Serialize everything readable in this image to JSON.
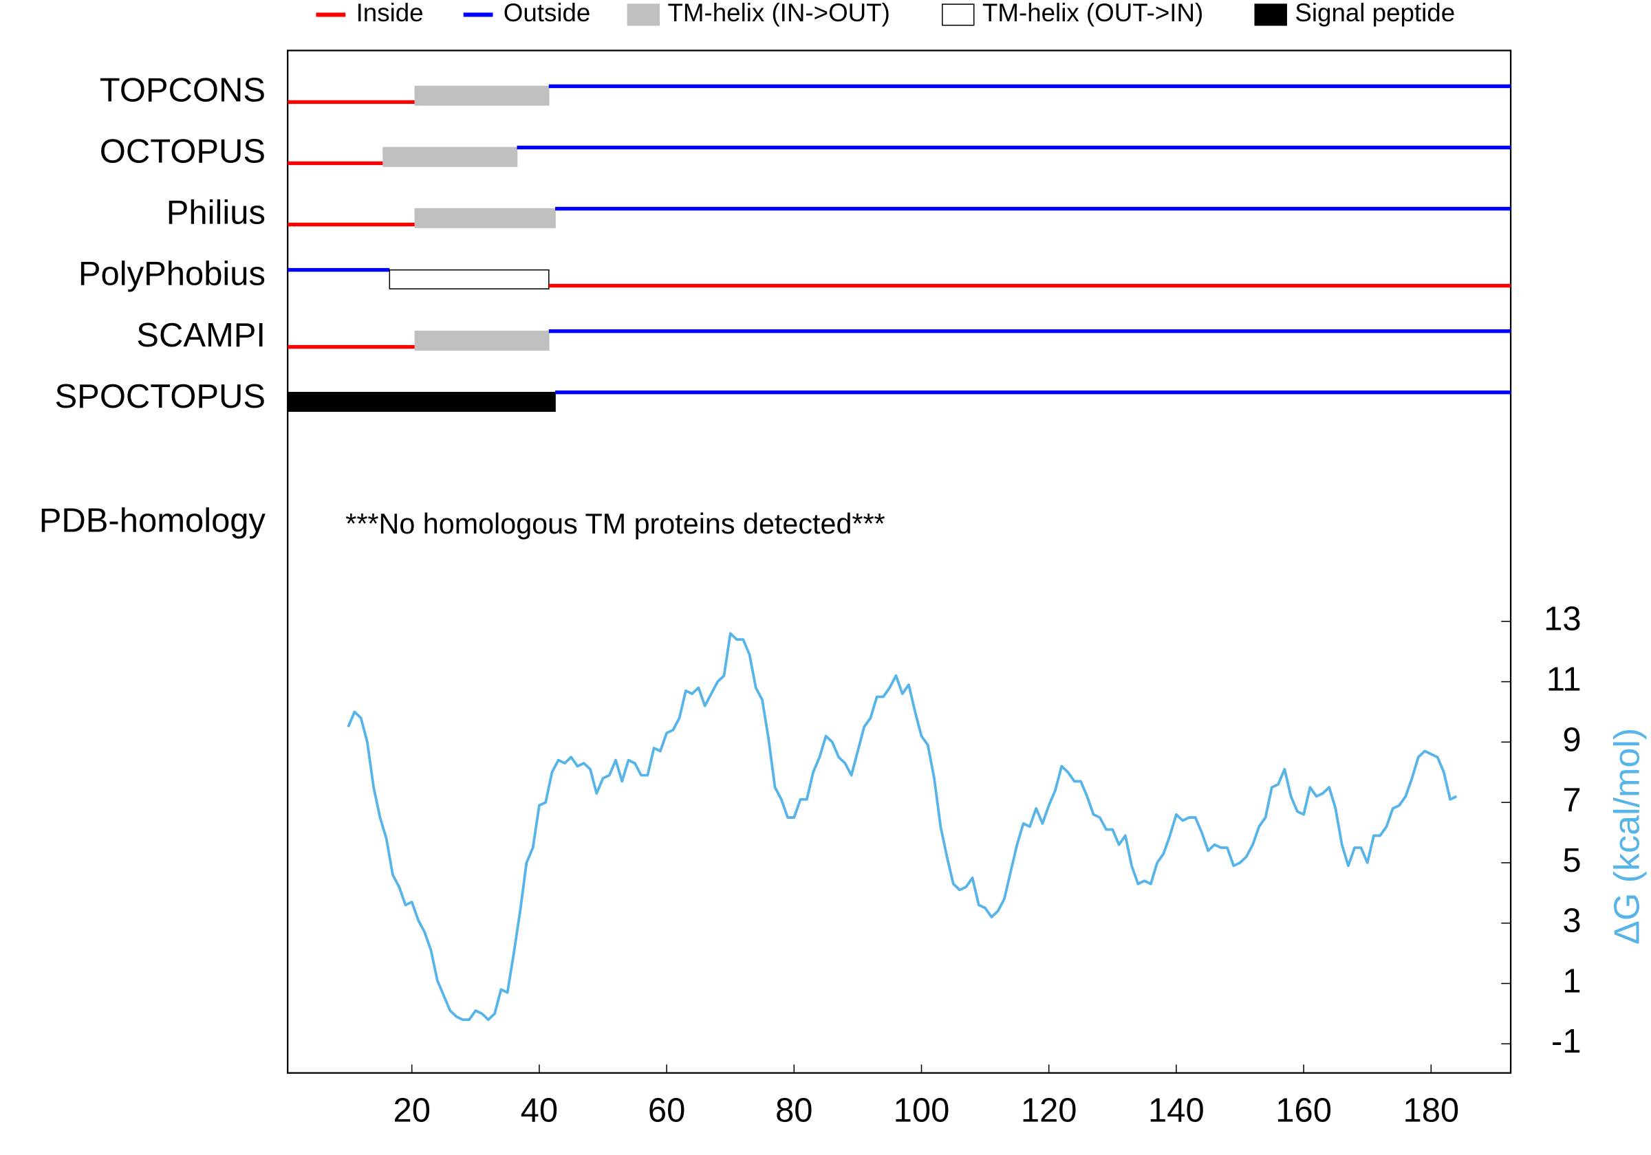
{
  "chart_data": [
    {
      "type": "topology",
      "legend": [
        {
          "name": "Inside",
          "kind": "inside",
          "color": "#ff0000"
        },
        {
          "name": "Outside",
          "kind": "outside",
          "color": "#0000ff"
        },
        {
          "name": "TM-helix (IN->OUT)",
          "kind": "tm-in-out",
          "color": "#c0c0c0"
        },
        {
          "name": "TM-helix (OUT->IN)",
          "kind": "tm-out-in",
          "color": "#ffffff"
        },
        {
          "name": "Signal peptide",
          "kind": "signal",
          "color": "#000000"
        }
      ],
      "methods": [
        {
          "name": "TOPCONS",
          "segments": [
            {
              "kind": "inside",
              "start": 1,
              "end": 20
            },
            {
              "kind": "tm-in-out",
              "start": 21,
              "end": 41
            },
            {
              "kind": "outside",
              "start": 42,
              "end": 192
            }
          ]
        },
        {
          "name": "OCTOPUS",
          "segments": [
            {
              "kind": "inside",
              "start": 1,
              "end": 15
            },
            {
              "kind": "tm-in-out",
              "start": 16,
              "end": 36
            },
            {
              "kind": "outside",
              "start": 37,
              "end": 192
            }
          ]
        },
        {
          "name": "Philius",
          "segments": [
            {
              "kind": "inside",
              "start": 1,
              "end": 20
            },
            {
              "kind": "tm-in-out",
              "start": 21,
              "end": 42
            },
            {
              "kind": "outside",
              "start": 43,
              "end": 192
            }
          ]
        },
        {
          "name": "PolyPhobius",
          "segments": [
            {
              "kind": "outside",
              "start": 1,
              "end": 16
            },
            {
              "kind": "tm-out-in",
              "start": 17,
              "end": 41
            },
            {
              "kind": "inside",
              "start": 42,
              "end": 192
            }
          ]
        },
        {
          "name": "SCAMPI",
          "segments": [
            {
              "kind": "inside",
              "start": 1,
              "end": 20
            },
            {
              "kind": "tm-in-out",
              "start": 21,
              "end": 41
            },
            {
              "kind": "outside",
              "start": 42,
              "end": 192
            }
          ]
        },
        {
          "name": "SPOCTOPUS",
          "segments": [
            {
              "kind": "signal",
              "start": 1,
              "end": 42
            },
            {
              "kind": "outside",
              "start": 43,
              "end": 192
            }
          ]
        }
      ],
      "homology_label": "PDB-homology",
      "homology_note": "***No homologous TM proteins detected***"
    },
    {
      "type": "line",
      "y_label": "ΔG (kcal/mol)",
      "color": "#56b4e9",
      "xlim": [
        0.5,
        192.5
      ],
      "xticks": [
        20,
        40,
        60,
        80,
        100,
        120,
        140,
        160,
        180
      ],
      "ylim": [
        -2,
        14
      ],
      "yticks": [
        -1,
        1,
        3,
        5,
        7,
        9,
        11,
        13
      ],
      "x": [
        10,
        11,
        12,
        13,
        14,
        15,
        16,
        17,
        18,
        19,
        20,
        21,
        22,
        23,
        24,
        25,
        26,
        27,
        28,
        29,
        30,
        31,
        32,
        33,
        34,
        35,
        36,
        37,
        38,
        39,
        40,
        41,
        42,
        43,
        44,
        45,
        46,
        47,
        48,
        49,
        50,
        51,
        52,
        53,
        54,
        55,
        56,
        57,
        58,
        59,
        60,
        61,
        62,
        63,
        64,
        65,
        66,
        67,
        68,
        69,
        70,
        71,
        72,
        73,
        74,
        75,
        76,
        77,
        78,
        79,
        80,
        81,
        82,
        83,
        84,
        85,
        86,
        87,
        88,
        89,
        90,
        91,
        92,
        93,
        94,
        95,
        96,
        97,
        98,
        99,
        100,
        101,
        102,
        103,
        104,
        105,
        106,
        107,
        108,
        109,
        110,
        111,
        112,
        113,
        114,
        115,
        116,
        117,
        118,
        119,
        120,
        121,
        122,
        123,
        124,
        125,
        126,
        127,
        128,
        129,
        130,
        131,
        132,
        133,
        134,
        135,
        136,
        137,
        138,
        139,
        140,
        141,
        142,
        143,
        144,
        145,
        146,
        147,
        148,
        149,
        150,
        151,
        152,
        153,
        154,
        155,
        156,
        157,
        158,
        159,
        160,
        161,
        162,
        163,
        164,
        165,
        166,
        167,
        168,
        169,
        170,
        171,
        172,
        173,
        174,
        175,
        176,
        177,
        178,
        179,
        180,
        181,
        182,
        183,
        184
      ],
      "values": [
        9.5,
        10.0,
        9.8,
        9.0,
        7.5,
        6.5,
        5.8,
        4.6,
        4.2,
        3.6,
        3.7,
        3.1,
        2.7,
        2.1,
        1.1,
        0.6,
        0.1,
        -0.1,
        -0.2,
        -0.2,
        0.1,
        0.0,
        -0.2,
        0.0,
        0.8,
        0.7,
        2.0,
        3.4,
        5.0,
        5.5,
        6.9,
        7.0,
        8.0,
        8.4,
        8.3,
        8.5,
        8.2,
        8.3,
        8.1,
        7.3,
        7.8,
        7.9,
        8.4,
        7.7,
        8.4,
        8.3,
        7.9,
        7.9,
        8.8,
        8.7,
        9.3,
        9.4,
        9.8,
        10.7,
        10.6,
        10.8,
        10.2,
        10.6,
        11.0,
        11.2,
        12.6,
        12.4,
        12.4,
        11.9,
        10.8,
        10.4,
        9.1,
        7.5,
        7.1,
        6.5,
        6.5,
        7.1,
        7.1,
        8.0,
        8.5,
        9.2,
        9.0,
        8.5,
        8.3,
        7.9,
        8.7,
        9.5,
        9.8,
        10.5,
        10.5,
        10.8,
        11.2,
        10.6,
        10.9,
        10.0,
        9.2,
        8.9,
        7.8,
        6.2,
        5.2,
        4.3,
        4.1,
        4.2,
        4.5,
        3.6,
        3.5,
        3.2,
        3.4,
        3.8,
        4.7,
        5.6,
        6.3,
        6.2,
        6.8,
        6.3,
        6.9,
        7.4,
        8.2,
        8.0,
        7.7,
        7.7,
        7.2,
        6.6,
        6.5,
        6.1,
        6.1,
        5.6,
        5.9,
        4.9,
        4.3,
        4.4,
        4.3,
        5.0,
        5.3,
        5.9,
        6.6,
        6.4,
        6.5,
        6.5,
        6.0,
        5.4,
        5.6,
        5.5,
        5.5,
        4.9,
        5.0,
        5.2,
        5.6,
        6.2,
        6.5,
        7.5,
        7.6,
        8.1,
        7.2,
        6.7,
        6.6,
        7.5,
        7.2,
        7.3,
        7.5,
        6.8,
        5.6,
        4.9,
        5.5,
        5.5,
        5.0,
        5.9,
        5.9,
        6.2,
        6.8,
        6.9,
        7.2,
        7.8,
        8.5,
        8.7,
        8.6,
        8.5,
        8.0,
        7.1,
        7.2
      ]
    }
  ]
}
